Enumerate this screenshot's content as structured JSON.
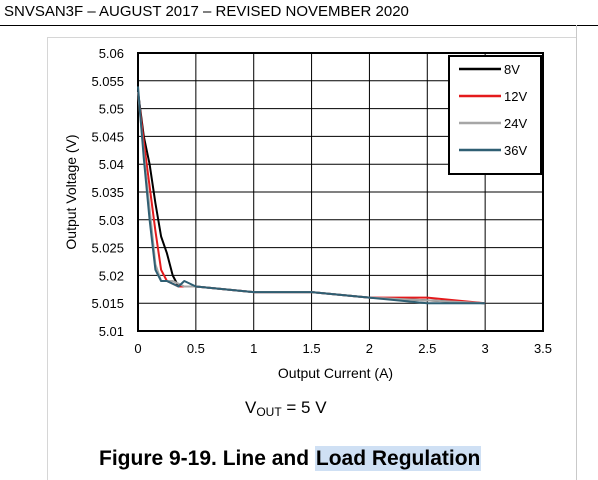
{
  "header": {
    "doc_line": "SNVSAN3F – AUGUST 2017 – REVISED NOVEMBER 2020"
  },
  "chart_data": {
    "type": "line",
    "xlabel": "Output Current (A)",
    "ylabel": "Output Voltage (V)",
    "xlim": [
      0,
      3.5
    ],
    "ylim": [
      5.01,
      5.06
    ],
    "x_ticks": [
      "0",
      "0.5",
      "1",
      "1.5",
      "2",
      "2.5",
      "3",
      "3.5"
    ],
    "y_ticks": [
      "5.01",
      "5.015",
      "5.02",
      "5.025",
      "5.03",
      "5.035",
      "5.04",
      "5.045",
      "5.05",
      "5.055",
      "5.06"
    ],
    "grid": true,
    "legend_position": "top-right",
    "series": [
      {
        "name": "8V",
        "color": "#000000",
        "x": [
          0,
          0.05,
          0.1,
          0.15,
          0.2,
          0.25,
          0.3,
          0.35,
          0.4,
          0.45,
          0.5,
          1.0,
          1.5,
          2.0,
          2.5,
          3.0
        ],
        "y": [
          5.053,
          5.045,
          5.04,
          5.033,
          5.027,
          5.024,
          5.02,
          5.018,
          5.018,
          5.018,
          5.018,
          5.017,
          5.017,
          5.016,
          5.0155,
          5.015
        ]
      },
      {
        "name": "12V",
        "color": "#e41a1c",
        "x": [
          0,
          0.05,
          0.1,
          0.15,
          0.2,
          0.25,
          0.3,
          0.35,
          0.4,
          0.5,
          1.0,
          1.5,
          2.0,
          2.5,
          3.0
        ],
        "y": [
          5.053,
          5.044,
          5.036,
          5.028,
          5.021,
          5.019,
          5.0185,
          5.018,
          5.018,
          5.018,
          5.017,
          5.017,
          5.016,
          5.016,
          5.015
        ]
      },
      {
        "name": "24V",
        "color": "#a6a6a6",
        "x": [
          0,
          0.05,
          0.1,
          0.15,
          0.2,
          0.25,
          0.3,
          0.35,
          0.4,
          0.5,
          1.0,
          1.5,
          2.0,
          2.5,
          3.0
        ],
        "y": [
          5.053,
          5.042,
          5.032,
          5.022,
          5.019,
          5.019,
          5.019,
          5.0185,
          5.018,
          5.018,
          5.017,
          5.017,
          5.016,
          5.0155,
          5.015
        ]
      },
      {
        "name": "36V",
        "color": "#2f5f73",
        "x": [
          0,
          0.05,
          0.1,
          0.15,
          0.2,
          0.25,
          0.3,
          0.35,
          0.4,
          0.5,
          1.0,
          1.5,
          2.0,
          2.5,
          3.0
        ],
        "y": [
          5.054,
          5.041,
          5.03,
          5.021,
          5.019,
          5.019,
          5.0185,
          5.018,
          5.019,
          5.018,
          5.017,
          5.017,
          5.016,
          5.015,
          5.015
        ]
      }
    ]
  },
  "condition": {
    "v_prefix": "V",
    "v_sub": "OUT",
    "v_rest": " = 5 V"
  },
  "caption": {
    "prefix": "Figure 9-19. Line and ",
    "highlight": "Load Regulation"
  }
}
